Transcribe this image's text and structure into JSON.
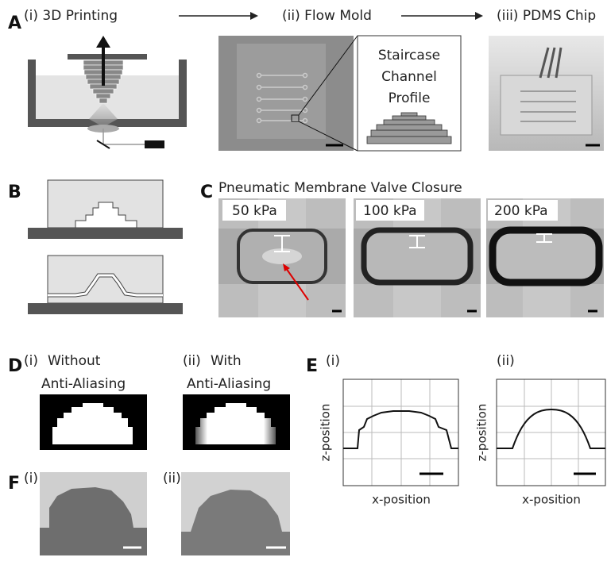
{
  "panels": {
    "A": {
      "label": "A",
      "steps": [
        "(i) 3D Printing",
        "(ii) Flow Mold",
        "(iii) PDMS Chip"
      ],
      "inset": [
        "Staircase",
        "Channel",
        "Profile"
      ]
    },
    "B": {
      "label": "B"
    },
    "C": {
      "label": "C",
      "title": "Pneumatic Membrane Valve Closure",
      "pressures": [
        "50 kPa",
        "100 kPa",
        "200 kPa"
      ]
    },
    "D": {
      "label": "D",
      "items": [
        {
          "label": "(i)",
          "lines": [
            "Without",
            "Anti-Aliasing"
          ]
        },
        {
          "label": "(ii)",
          "lines": [
            "With",
            "Anti-Aliasing"
          ]
        }
      ]
    },
    "E": {
      "label": "E",
      "items": [
        {
          "label": "(i)",
          "xlabel": "x-position",
          "ylabel": "z-position"
        },
        {
          "label": "(ii)",
          "xlabel": "x-position",
          "ylabel": "z-position"
        }
      ]
    },
    "F": {
      "label": "F",
      "items": [
        "(i)",
        "(ii)"
      ]
    }
  }
}
